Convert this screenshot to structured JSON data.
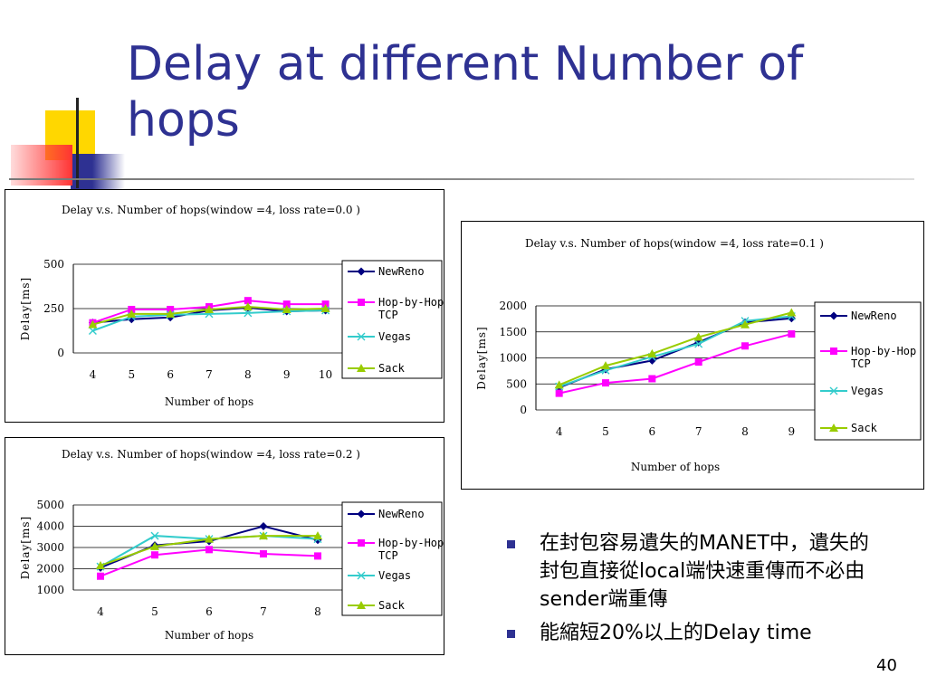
{
  "slide": {
    "title": "Delay at different Number of hops",
    "page_number": "40",
    "bullets": [
      "在封包容易遺失的MANET中，遺失的封包直接從local端快速重傳而不必由sender端重傳",
      "能縮短20%以上的Delay time"
    ]
  },
  "colors": {
    "title": "#2e3192",
    "newreno": "#000080",
    "hopbyhop": "#ff00ff",
    "vegas": "#33cccc",
    "sack": "#99cc00",
    "deco_yellow": "#ffd700",
    "deco_blue": "#2e3192",
    "deco_red": "#ff3333"
  },
  "chart_data": [
    {
      "type": "line",
      "title": "Delay v.s. Number of hops(window =4, loss rate=0.0 )",
      "xlabel": "Number of hops",
      "ylabel": "Delay[ms]",
      "categories": [
        "4",
        "5",
        "6",
        "7",
        "8",
        "9",
        "10"
      ],
      "ylim": [
        0,
        500
      ],
      "yticks": [
        "0",
        "250",
        "500"
      ],
      "grid": true,
      "legend": "right",
      "series": [
        {
          "name": "NewReno",
          "values": [
            170,
            190,
            200,
            240,
            255,
            235,
            240
          ]
        },
        {
          "name": "Hop-by-Hop TCP",
          "values": [
            170,
            245,
            245,
            260,
            295,
            275,
            275
          ]
        },
        {
          "name": "Vegas",
          "values": [
            125,
            205,
            215,
            220,
            225,
            235,
            240
          ]
        },
        {
          "name": "Sack",
          "values": [
            160,
            220,
            220,
            245,
            260,
            245,
            250
          ]
        }
      ]
    },
    {
      "type": "line",
      "title": "Delay v.s. Number of hops(window =4, loss rate=0.1 )",
      "xlabel": "Number of hops",
      "ylabel": "Delay[ms]",
      "categories": [
        "4",
        "5",
        "6",
        "7",
        "8",
        "9"
      ],
      "ylim": [
        0,
        2000
      ],
      "yticks": [
        "0",
        "500",
        "1000",
        "1500",
        "2000"
      ],
      "grid": true,
      "legend": "right",
      "series": [
        {
          "name": "NewReno",
          "values": [
            430,
            780,
            950,
            1300,
            1680,
            1760
          ]
        },
        {
          "name": "Hop-by-Hop TCP",
          "values": [
            320,
            520,
            600,
            920,
            1230,
            1460
          ]
        },
        {
          "name": "Vegas",
          "values": [
            450,
            760,
            1020,
            1270,
            1710,
            1800
          ]
        },
        {
          "name": "Sack",
          "values": [
            480,
            850,
            1080,
            1400,
            1640,
            1870
          ]
        }
      ]
    },
    {
      "type": "line",
      "title": "Delay v.s. Number of hops(window =4, loss rate=0.2 )",
      "xlabel": "Number of hops",
      "ylabel": "Delay[ms]",
      "categories": [
        "4",
        "5",
        "6",
        "7",
        "8"
      ],
      "ylim": [
        1000,
        5000
      ],
      "yticks": [
        "1000",
        "2000",
        "3000",
        "4000",
        "5000"
      ],
      "grid": true,
      "legend": "right",
      "series": [
        {
          "name": "NewReno",
          "values": [
            2050,
            3100,
            3300,
            4000,
            3350
          ]
        },
        {
          "name": "Hop-by-Hop TCP",
          "values": [
            1650,
            2650,
            2900,
            2700,
            2600
          ]
        },
        {
          "name": "Vegas",
          "values": [
            2100,
            3550,
            3400,
            3550,
            3400
          ]
        },
        {
          "name": "Sack",
          "values": [
            2150,
            3050,
            3400,
            3550,
            3550
          ]
        }
      ]
    }
  ]
}
